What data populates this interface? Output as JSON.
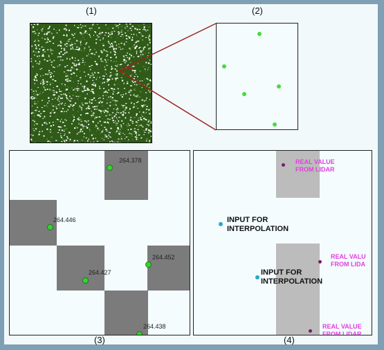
{
  "labels": {
    "p1": "(1)",
    "p2": "(2)",
    "p3": "(3)",
    "p4": "(4)"
  },
  "panel3": {
    "values": [
      "264.378",
      "264.446",
      "264.427",
      "264.452",
      "264.438"
    ]
  },
  "panel4": {
    "input_label_1": "INPUT FOR\nINTERPOLATION",
    "input_label_2": "INPUT FOR\nINTERPOLATION",
    "real_label_1": "REAL VALUE\nFROM LIDAR",
    "real_label_2": "REAL VALU\nFROM LIDA",
    "real_label_3": "REAL VALUE\nFROM LIDAR"
  },
  "colors": {
    "lidar_point": "#36d42e",
    "real_value_text": "#e23fe0",
    "zoom_line": "#a0201f",
    "dark_cell": "#7b7b7b",
    "light_cell": "#bcbcbc"
  }
}
